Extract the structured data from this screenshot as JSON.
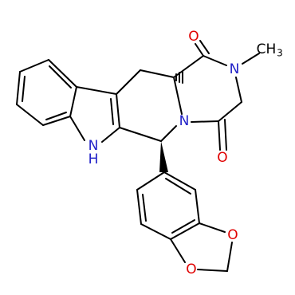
{
  "atoms": {
    "o_top": "O",
    "o_bottom": "O",
    "n_methyl": "N",
    "n_ring": "N",
    "methyl": {
      "text": "CH",
      "subscript": "3"
    },
    "indole_nh": {
      "n": "N",
      "h": "H"
    },
    "dioxole_o1": "O",
    "dioxole_o2": "O"
  }
}
